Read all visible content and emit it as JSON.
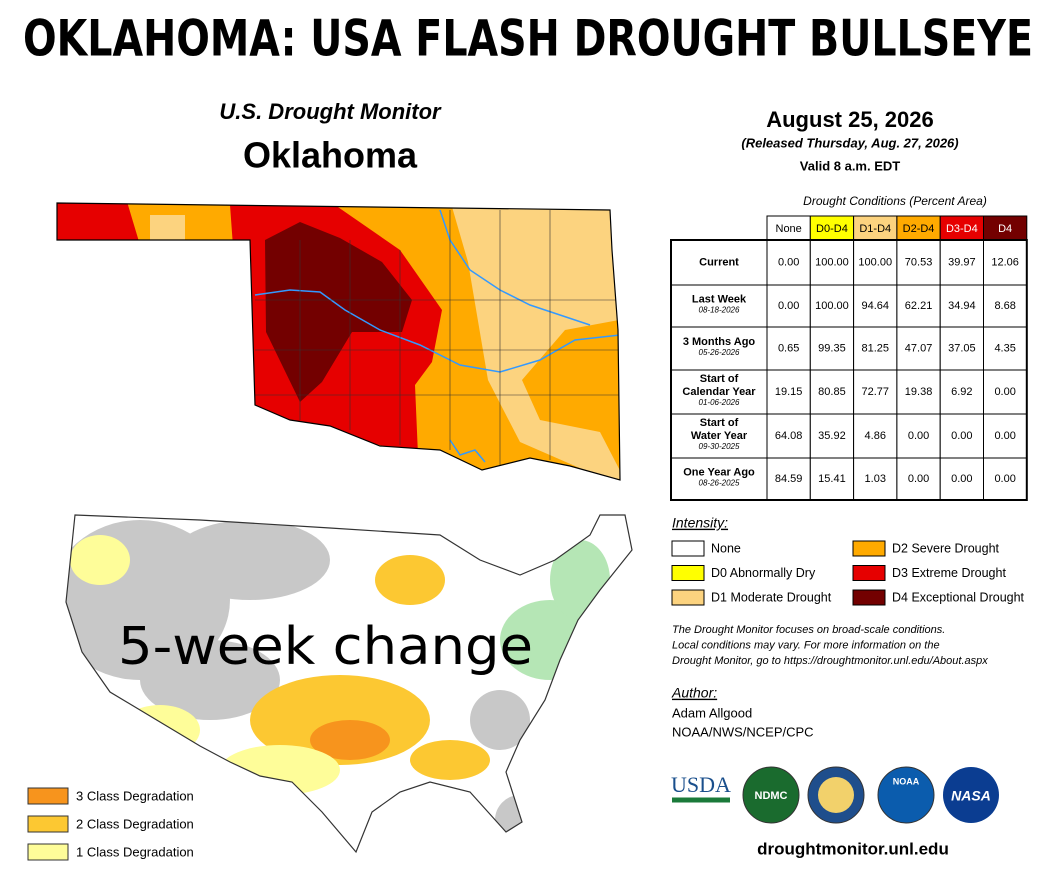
{
  "title": "OKLAHOMA: USA FLASH DROUGHT BULLSEYE",
  "monitor": {
    "heading": "U.S. Drought Monitor",
    "state": "Oklahoma"
  },
  "date": {
    "map_date": "August 25, 2026",
    "released": "(Released Thursday, Aug. 27, 2026)",
    "valid": "Valid 8 a.m. EDT"
  },
  "table": {
    "caption": "Drought Conditions (Percent Area)",
    "columns": [
      "None",
      "D0-D4",
      "D1-D4",
      "D2-D4",
      "D3-D4",
      "D4"
    ],
    "column_colors": [
      "#ffffff",
      "#ffff00",
      "#fcd37f",
      "#ffaa00",
      "#e60000",
      "#730000"
    ],
    "rows": [
      {
        "label": [
          "Current"
        ],
        "values": [
          "0.00",
          "100.00",
          "100.00",
          "70.53",
          "39.97",
          "12.06"
        ]
      },
      {
        "label": [
          "Last Week"
        ],
        "date": "08-18-2026",
        "values": [
          "0.00",
          "100.00",
          "94.64",
          "62.21",
          "34.94",
          "8.68"
        ]
      },
      {
        "label": [
          "3 Months Ago"
        ],
        "date": "05-26-2026",
        "values": [
          "0.65",
          "99.35",
          "81.25",
          "47.07",
          "37.05",
          "4.35"
        ]
      },
      {
        "label": [
          "Start of",
          "Calendar Year"
        ],
        "date": "01-06-2026",
        "values": [
          "19.15",
          "80.85",
          "72.77",
          "19.38",
          "6.92",
          "0.00"
        ]
      },
      {
        "label": [
          "Start of",
          "Water Year"
        ],
        "date": "09-30-2025",
        "values": [
          "64.08",
          "35.92",
          "4.86",
          "0.00",
          "0.00",
          "0.00"
        ]
      },
      {
        "label": [
          "One Year Ago"
        ],
        "date": "08-26-2025",
        "values": [
          "84.59",
          "15.41",
          "1.03",
          "0.00",
          "0.00",
          "0.00"
        ]
      }
    ]
  },
  "intensity": {
    "title": "Intensity:",
    "items": [
      {
        "label": "None",
        "color": "#ffffff"
      },
      {
        "label": "D0 Abnormally Dry",
        "color": "#ffff00"
      },
      {
        "label": "D1 Moderate Drought",
        "color": "#fcd37f"
      },
      {
        "label": "D2 Severe Drought",
        "color": "#ffaa00"
      },
      {
        "label": "D3 Extreme Drought",
        "color": "#e60000"
      },
      {
        "label": "D4 Exceptional Drought",
        "color": "#730000"
      }
    ]
  },
  "note": [
    "The Drought Monitor focuses on broad-scale conditions.",
    "Local conditions may vary. For more information on the",
    "Drought Monitor, go to https://droughtmonitor.unl.edu/About.aspx"
  ],
  "author": {
    "title": "Author:",
    "name": "Adam Allgood",
    "agency": "NOAA/NWS/NCEP/CPC"
  },
  "logos": [
    "USDA",
    "NDMC",
    "NOAA",
    "NASA"
  ],
  "url": "droughtmonitor.unl.edu",
  "change_map": {
    "label": "5-week change",
    "legend": [
      {
        "label": "3 Class Degradation",
        "color": "#f7941d"
      },
      {
        "label": "2 Class Degradation",
        "color": "#fcc832"
      },
      {
        "label": "1 Class Degradation",
        "color": "#fefd99"
      }
    ]
  }
}
